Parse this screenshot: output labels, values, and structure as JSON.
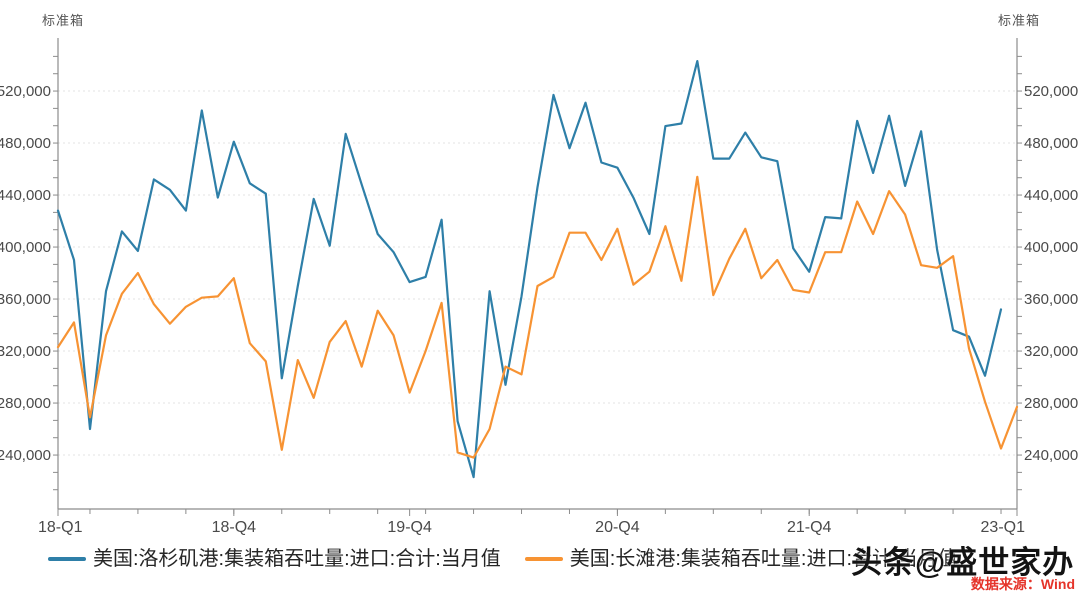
{
  "page": {
    "background": "#ffffff"
  },
  "chart_data": {
    "type": "line",
    "title": "",
    "axis_unit_left": "标准箱",
    "axis_unit_right": "标准箱",
    "legend_position": "bottom",
    "grid": "horizontal-dashed-major-only",
    "x": {
      "months": [
        "2018-01",
        "2018-02",
        "2018-03",
        "2018-04",
        "2018-05",
        "2018-06",
        "2018-07",
        "2018-08",
        "2018-09",
        "2018-10",
        "2018-11",
        "2018-12",
        "2019-01",
        "2019-02",
        "2019-03",
        "2019-04",
        "2019-05",
        "2019-06",
        "2019-07",
        "2019-08",
        "2019-09",
        "2019-10",
        "2019-11",
        "2019-12",
        "2020-01",
        "2020-02",
        "2020-03",
        "2020-04",
        "2020-05",
        "2020-06",
        "2020-07",
        "2020-08",
        "2020-09",
        "2020-10",
        "2020-11",
        "2020-12",
        "2021-01",
        "2021-02",
        "2021-03",
        "2021-04",
        "2021-05",
        "2021-06",
        "2021-07",
        "2021-08",
        "2021-09",
        "2021-10",
        "2021-11",
        "2021-12",
        "2022-01",
        "2022-02",
        "2022-03",
        "2022-04",
        "2022-05",
        "2022-06",
        "2022-07",
        "2022-08",
        "2022-09",
        "2022-10",
        "2022-11",
        "2022-12",
        "2023-01"
      ],
      "tick_labels": [
        {
          "label": "18-Q1",
          "month_index": 0
        },
        {
          "label": "18-Q4",
          "month_index": 11
        },
        {
          "label": "19-Q4",
          "month_index": 22
        },
        {
          "label": "20-Q4",
          "month_index": 35
        },
        {
          "label": "21-Q4",
          "month_index": 47
        },
        {
          "label": "23-Q1",
          "month_index": 60
        }
      ],
      "minor_tick_every_months": 3
    },
    "y": {
      "tick_labels": [
        "520,000",
        "480,000",
        "440,000",
        "400,000",
        "360,000",
        "320,000",
        "280,000",
        "240,000"
      ],
      "tick_values": [
        520000,
        480000,
        440000,
        400000,
        360000,
        320000,
        280000,
        240000
      ],
      "minor_tick_step": 13333,
      "ylim": [
        198500,
        560800
      ]
    },
    "series": [
      {
        "name": "美国:洛杉矶港:集装箱吞吐量:进口:合计:当月值",
        "color": "#2e7fa8",
        "values": [
          428000,
          390000,
          260000,
          366000,
          412000,
          397000,
          452000,
          444000,
          428000,
          505000,
          438000,
          481000,
          449000,
          441000,
          299000,
          370000,
          437000,
          401000,
          487000,
          448000,
          410000,
          396000,
          373000,
          377000,
          421000,
          266000,
          223000,
          366000,
          294000,
          362000,
          446000,
          517000,
          476000,
          511000,
          465000,
          461000,
          438000,
          410000,
          493000,
          495000,
          543000,
          468000,
          468000,
          488000,
          469000,
          466000,
          399000,
          381000,
          423000,
          422000,
          497000,
          457000,
          501000,
          447000,
          489000,
          398000,
          336000,
          331000,
          301000,
          352000,
          null
        ]
      },
      {
        "name": "美国:长滩港:集装箱吞吐量:进口:合计:当月值",
        "color": "#f79333",
        "values": [
          323000,
          342000,
          269000,
          332000,
          364000,
          380000,
          356000,
          341000,
          354000,
          361000,
          362000,
          376000,
          326000,
          312000,
          244000,
          313000,
          284000,
          327000,
          343000,
          308000,
          351000,
          332000,
          288000,
          320000,
          357000,
          242000,
          238000,
          260000,
          308000,
          302000,
          370000,
          377000,
          411000,
          411000,
          390000,
          414000,
          371000,
          381000,
          416000,
          374000,
          454000,
          363000,
          391000,
          414000,
          376000,
          390000,
          367000,
          365000,
          396000,
          396000,
          435000,
          410000,
          443000,
          425000,
          386000,
          384000,
          393000,
          322000,
          281000,
          245000,
          277000
        ]
      }
    ]
  },
  "watermark": {
    "text": "头条@盛世家办",
    "color": "#131313"
  },
  "source": {
    "text": "数据来源：Wind",
    "color": "#e5342a"
  }
}
